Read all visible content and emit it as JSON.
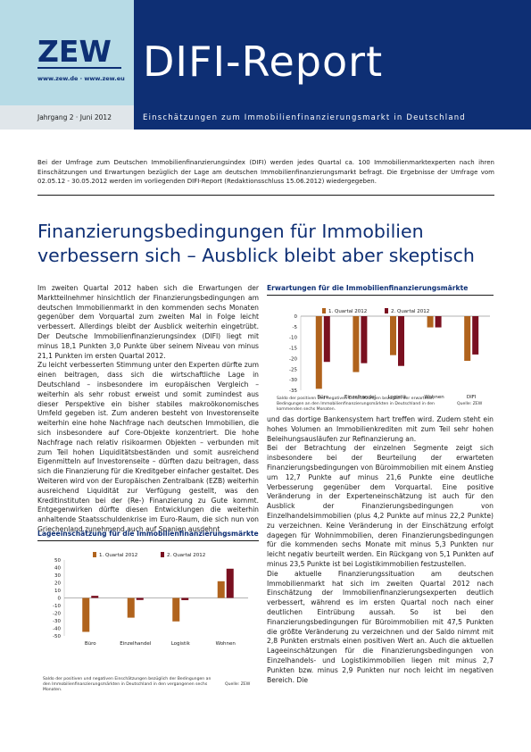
{
  "header": {
    "logo": "ZEW",
    "urls": "www.zew.de · www.zew.eu",
    "title": "DIFI-Report",
    "issue": "Jahrgang 2 · Juni 2012",
    "subtitle": "Einschätzungen zum Immobilienfinanzierungsmarkt in Deutschland"
  },
  "intro": "Bei der Umfrage zum Deutschen Immobilienfinanzierungsindex (DIFI) werden jedes Quartal ca. 100 Immobilienmarktexperten nach ihren Einschätzungen und Erwartungen bezüglich der Lage am deutschen Immobilienfinanzierungsmarkt befragt. Die Ergebnisse der Umfrage vom 02.05.12 - 30.05.2012 werden im vorliegenden DIFI-Report (Redaktionsschluss 15.06.2012) wiedergegeben.",
  "headline": {
    "line1": "Finanzierungsbedingungen für Immobilien",
    "line2": "verbessern sich – Ausblick bleibt aber skeptisch"
  },
  "body_left": [
    "Im zweiten Quartal 2012 haben sich die Erwartungen der Marktteilnehmer hinsichtlich der Finanzierungsbedingungen am deutschen Immobilienmarkt in den kommenden sechs Monaten gegenüber dem Vorquartal zum zweiten Mal in Folge leicht verbessert. Allerdings bleibt der Ausblick weiterhin eingetrübt. Der Deutsche Immobilienfinanzierungsindex (DIFI) liegt mit minus 18,1 Punkten 3,0 Punkte über seinem Niveau von minus 21,1 Punkten im ersten Quartal 2012.",
    "Zu leicht verbesserten Stimmung unter den Experten dürfte zum einen beitragen, dass sich die wirtschaftliche Lage in Deutschland – insbesondere im europäischen Vergleich – weiterhin als sehr robust erweist und somit zumindest aus dieser Perspektive ein bisher stabiles makroökonomisches Umfeld gegeben ist. Zum anderen besteht von Investorenseite weiterhin eine hohe Nachfrage nach deutschen Immobilien, die sich insbesondere auf Core-Objekte konzentriert. Die hohe Nachfrage nach relativ risikoarmen Objekten – verbunden mit zum Teil hohen Liquiditätsbeständen und somit ausreichend Eigenmitteln auf Investorenseite – dürften dazu beitragen, dass sich die Finanzierung für die Kreditgeber einfacher gestaltet. Des Weiteren wird von der Europäischen Zentralbank (EZB) weiterhin ausreichend Liquidität zur Verfügung gestellt, was den Kreditinstituten bei der (Re-) Finanzierung zu Gute kommt. Entgegenwirken dürfte diesen Entwicklungen die weiterhin anhaltende Staatsschuldenkrise im Euro-Raum, die sich nun von Griechenland zunehmend auch auf Spanien ausdehnt"
  ],
  "body_right": [
    "und das dortige Bankensystem hart treffen wird. Zudem steht ein hohes Volumen an Immobilienkrediten mit zum Teil sehr hohen Beleihungsausläufen zur Refinanzierung an.",
    "Bei der Betrachtung der einzelnen Segmente zeigt sich insbesondere bei der Beurteilung der erwarteten Finanzierungsbedingungen von Büroimmobilien mit einem Anstieg um 12,7 Punkte auf minus 21,6 Punkte eine deutliche Verbesserung gegenüber dem Vorquartal. Eine positive Veränderung in der Experteneinschätzung ist auch für den Ausblick der Finanzierungsbedingungen von Einzelhandelsimmobilien (plus 4,2 Punkte auf minus 22,2 Punkte) zu verzeichnen. Keine Veränderung in der Einschätzung erfolgt dagegen für Wohnimmobilien, deren Finanzierungsbedingungen für die kommenden sechs Monate mit minus 5,3 Punkten nur leicht negativ beurteilt werden. Ein Rückgang von 5,1 Punkten auf minus 23,5 Punkte ist bei Logistikimmobilien festzustellen.",
    "Die aktuelle Finanzierungssituation am deutschen Immobilienmarkt hat sich im zweiten Quartal 2012 nach Einschätzung der Immobilienfinanzierungsexperten deutlich verbessert, während es im ersten Quartal noch nach einer deutlichen Eintrübung aussah. So ist bei den Finanzierungsbedingungen für Büroimmobilien mit 47,5 Punkten die größte Veränderung zu verzeichnen und der Saldo nimmt mit 2,8 Punkten erstmals einen positiven Wert an. Auch die aktuellen Lageeinschätzungen für die Finanzierungsbedingungen von Einzelhandels- und Logistikimmobilien liegen mit minus 2,7 Punkten bzw. minus 2,9 Punkten nur noch leicht im negativen Bereich. Die"
  ],
  "chart_data": [
    {
      "type": "bar",
      "title": "Erwartungen für die Immobilienfinanzierungsmärkte",
      "categories": [
        "Büro",
        "Einzelhandel",
        "Logistik",
        "Wohnen",
        "DIFI"
      ],
      "series": [
        {
          "name": "1. Quartal 2012",
          "values": [
            -34.3,
            -26.4,
            -18.4,
            -5.3,
            -21.1
          ],
          "color": "#b0631d"
        },
        {
          "name": "2. Quartal 2012",
          "values": [
            -21.6,
            -22.2,
            -23.5,
            -5.3,
            -18.1
          ],
          "color": "#7a1020"
        }
      ],
      "yticks": [
        "0",
        "-5",
        "-10",
        "-15",
        "-20",
        "-25",
        "-30",
        "-35"
      ],
      "ylim": [
        -35,
        0
      ],
      "note": "Saldo der positiven und negativen Einschätzungen bezüglich der erwarteten Bedingungen an den Immobilienfinanzierungsmärkten in Deutschland in den kommenden sechs Monaten.",
      "source": "Quelle: ZEW"
    },
    {
      "type": "bar",
      "title": "Lageeinschätzung für die Immobilienfinanzierungsmärkte",
      "categories": [
        "Büro",
        "Einzelhandel",
        "Logistik",
        "Wohnen"
      ],
      "series": [
        {
          "name": "1. Quartal 2012",
          "values": [
            -44.7,
            -26.0,
            -30.9,
            22.0
          ],
          "color": "#b0631d"
        },
        {
          "name": "2. Quartal 2012",
          "values": [
            2.8,
            -2.7,
            -2.9,
            38.5
          ],
          "color": "#7a1020"
        }
      ],
      "yticks": [
        "50",
        "40",
        "30",
        "20",
        "10",
        "0",
        "-10",
        "-20",
        "-30",
        "-40",
        "-50"
      ],
      "ylim": [
        -50,
        50
      ],
      "note": "Saldo der positiven und negativen Einschätzungen bezüglich der Bedingungen an den Immobilienfinanzierungsmärkten in Deutschland in den vergangenen sechs Monaten.",
      "source": "Quelle: ZEW"
    }
  ]
}
